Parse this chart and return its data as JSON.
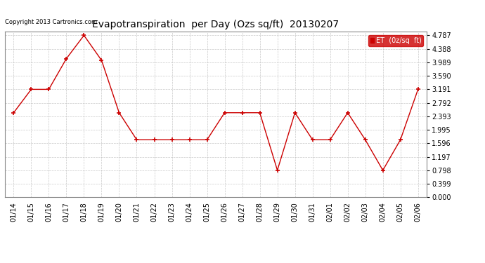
{
  "title": "Evapotranspiration  per Day (Ozs sq/ft)  20130207",
  "copyright_text": "Copyright 2013 Cartronics.com",
  "legend_label": "ET  (0z/sq  ft)",
  "x_labels": [
    "01/14",
    "01/15",
    "01/16",
    "01/17",
    "01/18",
    "01/19",
    "01/20",
    "01/21",
    "01/22",
    "01/23",
    "01/24",
    "01/25",
    "01/26",
    "01/27",
    "01/28",
    "01/29",
    "01/30",
    "01/31",
    "02/01",
    "02/02",
    "02/03",
    "02/04",
    "02/05",
    "02/06"
  ],
  "y_values": [
    2.5,
    3.191,
    3.191,
    4.1,
    4.787,
    4.05,
    2.5,
    1.7,
    1.7,
    1.7,
    1.7,
    1.7,
    2.5,
    2.5,
    2.5,
    0.798,
    2.5,
    1.7,
    1.7,
    2.5,
    1.7,
    0.798,
    1.7,
    3.191
  ],
  "y_ticks": [
    0.0,
    0.399,
    0.798,
    1.197,
    1.596,
    1.995,
    2.393,
    2.792,
    3.191,
    3.59,
    3.989,
    4.388,
    4.787
  ],
  "ylim": [
    0.0,
    4.9
  ],
  "line_color": "#cc0000",
  "background_color": "#ffffff",
  "grid_color": "#bbbbbb",
  "title_fontsize": 10,
  "copyright_fontsize": 6,
  "tick_fontsize": 7,
  "legend_bg": "#cc0000",
  "legend_text_color": "#ffffff",
  "legend_fontsize": 7
}
